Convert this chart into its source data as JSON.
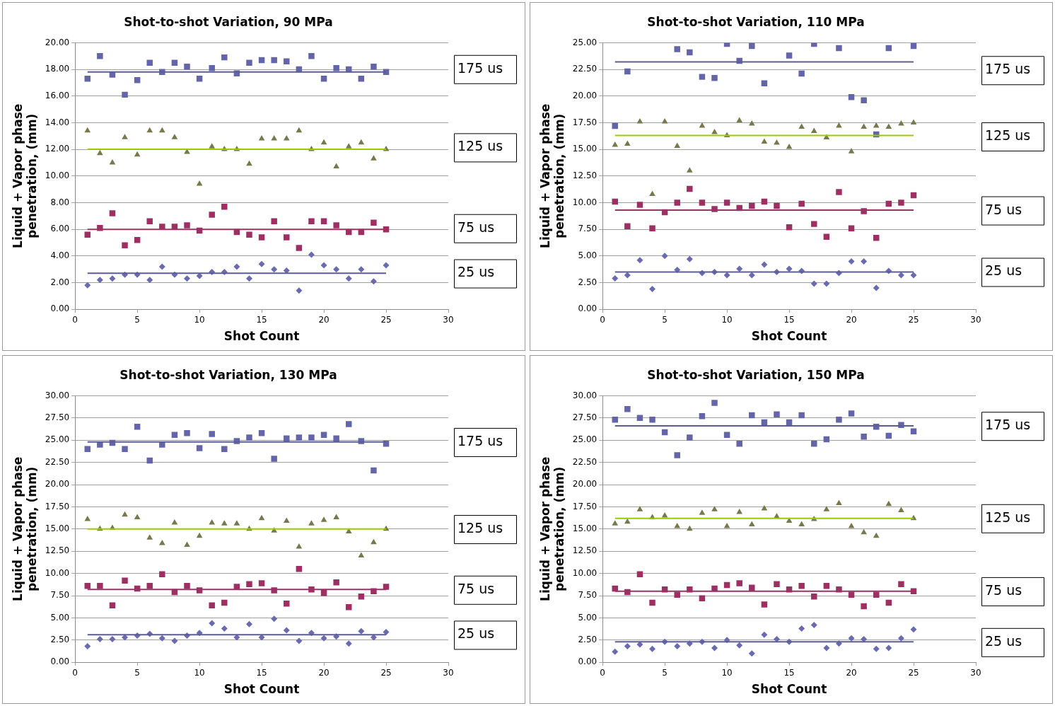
{
  "chart_data": [
    {
      "type": "scatter",
      "title": "Shot-to-shot Variation, 90 MPa",
      "xlabel": "Shot Count",
      "ylabel": "Liquid + Vapor phase penetration, (mm)",
      "legend": false,
      "grid": "y",
      "x": [
        1,
        2,
        3,
        4,
        5,
        6,
        7,
        8,
        9,
        10,
        11,
        12,
        13,
        14,
        15,
        16,
        17,
        18,
        19,
        20,
        21,
        22,
        23,
        24,
        25
      ],
      "xlim": [
        0,
        30
      ],
      "xticks": [
        0,
        5,
        10,
        15,
        20,
        25,
        30
      ],
      "ylim": [
        0,
        20
      ],
      "yticks": [
        {
          "value": 0,
          "label": "0.00"
        },
        {
          "value": 2,
          "label": "2.00"
        },
        {
          "value": 4,
          "label": "4.00"
        },
        {
          "value": 6,
          "label": "6.00"
        },
        {
          "value": 8,
          "label": "8.00"
        },
        {
          "value": 10,
          "label": "10.00"
        },
        {
          "value": 12,
          "label": "12.00"
        },
        {
          "value": 14,
          "label": "14.00"
        },
        {
          "value": 16,
          "label": "16.00"
        },
        {
          "value": 18,
          "label": "18.00"
        },
        {
          "value": 20,
          "label": "20.00"
        }
      ],
      "series": [
        {
          "name": "175 us",
          "type": "scatter",
          "marker": "square",
          "color": "#6464a8",
          "values": [
            17.3,
            19.0,
            17.6,
            16.1,
            17.2,
            18.5,
            17.8,
            18.5,
            18.2,
            17.3,
            18.1,
            18.9,
            17.7,
            18.5,
            18.7,
            18.7,
            18.6,
            18.0,
            19.0,
            17.3,
            18.1,
            18.0,
            17.3,
            18.2,
            17.8
          ]
        },
        {
          "type": "line",
          "marker": "none",
          "color": "#5c5c94",
          "values": [
            17.8,
            17.8,
            17.8,
            17.8,
            17.8,
            17.8,
            17.8,
            17.8,
            17.8,
            17.8,
            17.8,
            17.8,
            17.8,
            17.8,
            17.8,
            17.8,
            17.8,
            17.8,
            17.8,
            17.8,
            17.8,
            17.8,
            17.8,
            17.8,
            17.8
          ]
        },
        {
          "name": "125 us",
          "type": "scatter",
          "marker": "triangle",
          "color": "#77784c",
          "values": [
            13.4,
            11.7,
            11.0,
            12.9,
            11.6,
            13.4,
            13.4,
            12.9,
            11.8,
            9.4,
            12.2,
            12.0,
            12.0,
            10.9,
            12.8,
            12.8,
            12.8,
            13.4,
            12.0,
            12.5,
            10.7,
            12.2,
            12.5,
            11.3,
            12.0
          ]
        },
        {
          "type": "line",
          "marker": "none",
          "color": "#99cc00",
          "values": [
            12.0,
            12.0,
            12.0,
            12.0,
            12.0,
            12.0,
            12.0,
            12.0,
            12.0,
            12.0,
            12.0,
            12.0,
            12.0,
            12.0,
            12.0,
            12.0,
            12.0,
            12.0,
            12.0,
            12.0,
            12.0,
            12.0,
            12.0,
            12.0,
            12.0
          ]
        },
        {
          "name": "75 us",
          "type": "scatter",
          "marker": "square",
          "color": "#9e2f62",
          "values": [
            5.6,
            6.1,
            7.2,
            4.8,
            5.2,
            6.6,
            6.2,
            6.2,
            6.3,
            5.9,
            7.1,
            7.7,
            5.8,
            5.6,
            5.4,
            6.6,
            5.4,
            4.6,
            6.6,
            6.6,
            6.3,
            5.8,
            5.8,
            6.5,
            6.0
          ]
        },
        {
          "type": "line",
          "marker": "none",
          "color": "#993366",
          "values": [
            6.0,
            6.0,
            6.0,
            6.0,
            6.0,
            6.0,
            6.0,
            6.0,
            6.0,
            6.0,
            6.0,
            6.0,
            6.0,
            6.0,
            6.0,
            6.0,
            6.0,
            6.0,
            6.0,
            6.0,
            6.0,
            6.0,
            6.0,
            6.0,
            6.0
          ]
        },
        {
          "name": "25 us",
          "type": "scatter",
          "marker": "diamond",
          "color": "#6a6ab0",
          "values": [
            1.8,
            2.2,
            2.3,
            2.6,
            2.6,
            2.2,
            3.2,
            2.6,
            2.3,
            2.5,
            2.8,
            2.8,
            3.2,
            2.3,
            3.4,
            3.0,
            2.9,
            1.4,
            4.1,
            3.3,
            3.0,
            2.3,
            3.0,
            2.1,
            3.3
          ]
        },
        {
          "type": "line",
          "marker": "none",
          "color": "#5c5c94",
          "values": [
            2.7,
            2.7,
            2.7,
            2.7,
            2.7,
            2.7,
            2.7,
            2.7,
            2.7,
            2.7,
            2.7,
            2.7,
            2.7,
            2.7,
            2.7,
            2.7,
            2.7,
            2.7,
            2.7,
            2.7,
            2.7,
            2.7,
            2.7,
            2.7,
            2.7
          ]
        }
      ]
    },
    {
      "type": "scatter",
      "title": "Shot-to-shot Variation, 110 MPa",
      "xlabel": "Shot Count",
      "ylabel": "Liquid + Vapor phase penetration, (mm)",
      "legend": false,
      "grid": "y",
      "x": [
        1,
        2,
        3,
        4,
        5,
        6,
        7,
        8,
        9,
        10,
        11,
        12,
        13,
        14,
        15,
        16,
        17,
        18,
        19,
        20,
        21,
        22,
        23,
        24,
        25
      ],
      "xlim": [
        0,
        30
      ],
      "xticks": [
        0,
        5,
        10,
        15,
        20,
        25,
        30
      ],
      "ylim": [
        0,
        25
      ],
      "yticks": [
        {
          "value": 0,
          "label": "0.00"
        },
        {
          "value": 2.5,
          "label": "2.50"
        },
        {
          "value": 5,
          "label": "5.00"
        },
        {
          "value": 7.5,
          "label": "7.50"
        },
        {
          "value": 10,
          "label": "10.00"
        },
        {
          "value": 12.5,
          "label": "12.50"
        },
        {
          "value": 15,
          "label": "15.00"
        },
        {
          "value": 17.5,
          "label": "17.50"
        },
        {
          "value": 20,
          "label": "20.00"
        },
        {
          "value": 22.5,
          "label": "22.50"
        },
        {
          "value": 25,
          "label": "25.00"
        }
      ],
      "series": [
        {
          "name": "175 us",
          "type": "scatter",
          "marker": "square",
          "color": "#6464a8",
          "values": [
            17.2,
            22.3,
            null,
            null,
            null,
            24.4,
            24.1,
            21.8,
            21.7,
            24.9,
            23.3,
            24.7,
            21.2,
            null,
            23.8,
            22.1,
            24.9,
            null,
            24.5,
            19.9,
            19.6,
            16.4,
            24.5,
            null,
            24.7
          ]
        },
        {
          "type": "line",
          "marker": "none",
          "color": "#5c5c94",
          "values": [
            23.2,
            23.2,
            23.2,
            23.2,
            23.2,
            23.2,
            23.2,
            23.2,
            23.2,
            23.2,
            23.2,
            23.2,
            23.2,
            23.2,
            23.2,
            23.2,
            23.2,
            23.2,
            23.2,
            23.2,
            23.2,
            23.2,
            23.2,
            23.2,
            23.2
          ]
        },
        {
          "name": "125 us",
          "type": "scatter",
          "marker": "triangle",
          "color": "#77784c",
          "values": [
            15.4,
            15.5,
            17.6,
            10.8,
            17.6,
            15.3,
            13.0,
            17.2,
            16.6,
            16.3,
            17.7,
            17.4,
            15.7,
            15.6,
            15.2,
            17.1,
            16.7,
            16.1,
            17.2,
            14.8,
            17.1,
            17.2,
            17.1,
            17.4,
            17.5
          ]
        },
        {
          "type": "line",
          "marker": "none",
          "color": "#99cc00",
          "values": [
            16.3,
            16.3,
            16.3,
            16.3,
            16.3,
            16.3,
            16.3,
            16.3,
            16.3,
            16.3,
            16.3,
            16.3,
            16.3,
            16.3,
            16.3,
            16.3,
            16.3,
            16.3,
            16.3,
            16.3,
            16.3,
            16.3,
            16.3,
            16.3,
            16.3
          ]
        },
        {
          "name": "75 us",
          "type": "scatter",
          "marker": "square",
          "color": "#9e2f62",
          "values": [
            10.1,
            7.8,
            9.8,
            7.6,
            9.1,
            10.0,
            11.3,
            10.0,
            9.4,
            10.0,
            9.5,
            9.7,
            10.1,
            9.7,
            7.7,
            9.9,
            8.0,
            6.8,
            11.0,
            7.6,
            9.2,
            6.7,
            9.9,
            10.0,
            10.7
          ]
        },
        {
          "type": "line",
          "marker": "none",
          "color": "#993366",
          "values": [
            9.3,
            9.3,
            9.3,
            9.3,
            9.3,
            9.3,
            9.3,
            9.3,
            9.3,
            9.3,
            9.3,
            9.3,
            9.3,
            9.3,
            9.3,
            9.3,
            9.3,
            9.3,
            9.3,
            9.3,
            9.3,
            9.3,
            9.3,
            9.3,
            9.3
          ]
        },
        {
          "name": "25 us",
          "type": "scatter",
          "marker": "diamond",
          "color": "#6a6ab0",
          "values": [
            2.9,
            3.2,
            4.6,
            1.9,
            5.0,
            3.7,
            4.7,
            3.4,
            3.5,
            3.2,
            3.8,
            3.2,
            4.2,
            3.5,
            3.8,
            3.6,
            2.4,
            2.4,
            3.4,
            4.5,
            4.5,
            2.0,
            3.6,
            3.2,
            3.2
          ]
        },
        {
          "type": "line",
          "marker": "none",
          "color": "#5c5c94",
          "values": [
            3.5,
            3.5,
            3.5,
            3.5,
            3.5,
            3.5,
            3.5,
            3.5,
            3.5,
            3.5,
            3.5,
            3.5,
            3.5,
            3.5,
            3.5,
            3.5,
            3.5,
            3.5,
            3.5,
            3.5,
            3.5,
            3.5,
            3.5,
            3.5,
            3.5
          ]
        }
      ]
    },
    {
      "type": "scatter",
      "title": "Shot-to-shot Variation, 130 MPa",
      "xlabel": "Shot Count",
      "ylabel": "Liquid + Vapor phase penetration, (mm)",
      "legend": false,
      "grid": "y",
      "x": [
        1,
        2,
        3,
        4,
        5,
        6,
        7,
        8,
        9,
        10,
        11,
        12,
        13,
        14,
        15,
        16,
        17,
        18,
        19,
        20,
        21,
        22,
        23,
        24,
        25
      ],
      "xlim": [
        0,
        30
      ],
      "xticks": [
        0,
        5,
        10,
        15,
        20,
        25,
        30
      ],
      "ylim": [
        0,
        30
      ],
      "yticks": [
        {
          "value": 0,
          "label": "0.00"
        },
        {
          "value": 2.5,
          "label": "2.50"
        },
        {
          "value": 5,
          "label": "5.00"
        },
        {
          "value": 7.5,
          "label": "7.50"
        },
        {
          "value": 10,
          "label": "10.00"
        },
        {
          "value": 12.5,
          "label": "12.50"
        },
        {
          "value": 15,
          "label": "15.00"
        },
        {
          "value": 17.5,
          "label": "17.50"
        },
        {
          "value": 20,
          "label": "20.00"
        },
        {
          "value": 22.5,
          "label": "22.50"
        },
        {
          "value": 25,
          "label": "25.00"
        },
        {
          "value": 27.5,
          "label": "27.50"
        },
        {
          "value": 30,
          "label": "30.00"
        }
      ],
      "series": [
        {
          "name": "175 us",
          "type": "scatter",
          "marker": "square",
          "color": "#6464a8",
          "values": [
            24.0,
            24.5,
            24.7,
            24.0,
            26.5,
            22.7,
            24.5,
            25.6,
            25.8,
            24.1,
            25.7,
            24.0,
            24.9,
            25.3,
            25.8,
            22.9,
            25.2,
            25.3,
            25.3,
            25.6,
            25.2,
            26.8,
            24.9,
            21.6,
            24.6
          ]
        },
        {
          "type": "line",
          "marker": "none",
          "color": "#5c5c94",
          "values": [
            24.8,
            24.8,
            24.8,
            24.8,
            24.8,
            24.8,
            24.8,
            24.8,
            24.8,
            24.8,
            24.8,
            24.8,
            24.8,
            24.8,
            24.8,
            24.8,
            24.8,
            24.8,
            24.8,
            24.8,
            24.8,
            24.8,
            24.8,
            24.8,
            24.8
          ]
        },
        {
          "name": "125 us",
          "type": "scatter",
          "marker": "triangle",
          "color": "#77784c",
          "values": [
            16.1,
            15.0,
            15.1,
            16.6,
            16.3,
            14.0,
            13.4,
            15.7,
            13.2,
            14.2,
            15.7,
            15.6,
            15.6,
            15.0,
            16.2,
            14.8,
            15.9,
            13.0,
            15.6,
            16.0,
            16.3,
            14.7,
            12.0,
            13.5,
            15.0
          ]
        },
        {
          "type": "line",
          "marker": "none",
          "color": "#99cc00",
          "values": [
            15.0,
            15.0,
            15.0,
            15.0,
            15.0,
            15.0,
            15.0,
            15.0,
            15.0,
            15.0,
            15.0,
            15.0,
            15.0,
            15.0,
            15.0,
            15.0,
            15.0,
            15.0,
            15.0,
            15.0,
            15.0,
            15.0,
            15.0,
            15.0,
            15.0
          ]
        },
        {
          "name": "75 us",
          "type": "scatter",
          "marker": "square",
          "color": "#9e2f62",
          "values": [
            8.6,
            8.6,
            6.4,
            9.2,
            8.3,
            8.6,
            9.9,
            7.9,
            8.6,
            8.1,
            6.4,
            6.7,
            8.5,
            8.8,
            8.9,
            8.1,
            6.6,
            10.5,
            8.2,
            7.8,
            9.0,
            6.2,
            7.4,
            8.0,
            8.5
          ]
        },
        {
          "type": "line",
          "marker": "none",
          "color": "#993366",
          "values": [
            8.2,
            8.2,
            8.2,
            8.2,
            8.2,
            8.2,
            8.2,
            8.2,
            8.2,
            8.2,
            8.2,
            8.2,
            8.2,
            8.2,
            8.2,
            8.2,
            8.2,
            8.2,
            8.2,
            8.2,
            8.2,
            8.2,
            8.2,
            8.2,
            8.2
          ]
        },
        {
          "name": "25 us",
          "type": "scatter",
          "marker": "diamond",
          "color": "#6a6ab0",
          "values": [
            1.8,
            2.6,
            2.6,
            2.8,
            3.0,
            3.2,
            2.7,
            2.4,
            3.0,
            3.3,
            4.4,
            3.8,
            2.8,
            4.3,
            2.8,
            4.9,
            3.6,
            2.4,
            3.3,
            2.7,
            2.9,
            2.1,
            3.5,
            2.8,
            3.4
          ]
        },
        {
          "type": "line",
          "marker": "none",
          "color": "#5c5c94",
          "values": [
            3.1,
            3.1,
            3.1,
            3.1,
            3.1,
            3.1,
            3.1,
            3.1,
            3.1,
            3.1,
            3.1,
            3.1,
            3.1,
            3.1,
            3.1,
            3.1,
            3.1,
            3.1,
            3.1,
            3.1,
            3.1,
            3.1,
            3.1,
            3.1,
            3.1
          ]
        }
      ]
    },
    {
      "type": "scatter",
      "title": "Shot-to-shot Variation, 150 MPa",
      "xlabel": "Shot Count",
      "ylabel": "Liquid + Vapor phase penetration, (mm)",
      "legend": false,
      "grid": "y",
      "x": [
        1,
        2,
        3,
        4,
        5,
        6,
        7,
        8,
        9,
        10,
        11,
        12,
        13,
        14,
        15,
        16,
        17,
        18,
        19,
        20,
        21,
        22,
        23,
        24,
        25
      ],
      "xlim": [
        0,
        30
      ],
      "xticks": [
        0,
        5,
        10,
        15,
        20,
        25,
        30
      ],
      "ylim": [
        0,
        30
      ],
      "yticks": [
        {
          "value": 0,
          "label": "0.00"
        },
        {
          "value": 2.5,
          "label": "2.50"
        },
        {
          "value": 5,
          "label": "5.00"
        },
        {
          "value": 7.5,
          "label": "7.50"
        },
        {
          "value": 10,
          "label": "10.00"
        },
        {
          "value": 12.5,
          "label": "12.50"
        },
        {
          "value": 15,
          "label": "15.00"
        },
        {
          "value": 17.5,
          "label": "17.50"
        },
        {
          "value": 20,
          "label": "20.00"
        },
        {
          "value": 22.5,
          "label": "22.50"
        },
        {
          "value": 25,
          "label": "25.00"
        },
        {
          "value": 27.5,
          "label": "27.50"
        },
        {
          "value": 30,
          "label": "30.00"
        }
      ],
      "series": [
        {
          "name": "175 us",
          "type": "scatter",
          "marker": "square",
          "color": "#6464a8",
          "values": [
            27.3,
            28.5,
            27.5,
            27.3,
            25.9,
            23.3,
            25.3,
            27.7,
            29.2,
            25.6,
            24.6,
            27.8,
            27.0,
            27.9,
            27.0,
            27.8,
            24.6,
            25.1,
            27.3,
            28.0,
            25.4,
            26.5,
            25.5,
            26.7,
            26.0
          ]
        },
        {
          "type": "line",
          "marker": "none",
          "color": "#5c5c94",
          "values": [
            26.6,
            26.6,
            26.6,
            26.6,
            26.6,
            26.6,
            26.6,
            26.6,
            26.6,
            26.6,
            26.6,
            26.6,
            26.6,
            26.6,
            26.6,
            26.6,
            26.6,
            26.6,
            26.6,
            26.6,
            26.6,
            26.6,
            26.6,
            26.6,
            26.6
          ]
        },
        {
          "name": "125 us",
          "type": "scatter",
          "marker": "triangle",
          "color": "#77784c",
          "values": [
            15.6,
            15.8,
            17.2,
            16.3,
            16.5,
            15.3,
            15.0,
            16.8,
            17.2,
            15.3,
            16.9,
            15.5,
            17.3,
            16.4,
            15.9,
            15.5,
            16.1,
            17.2,
            17.9,
            15.3,
            14.6,
            14.2,
            17.8,
            17.1,
            16.2
          ]
        },
        {
          "type": "line",
          "marker": "none",
          "color": "#99cc00",
          "values": [
            16.2,
            16.2,
            16.2,
            16.2,
            16.2,
            16.2,
            16.2,
            16.2,
            16.2,
            16.2,
            16.2,
            16.2,
            16.2,
            16.2,
            16.2,
            16.2,
            16.2,
            16.2,
            16.2,
            16.2,
            16.2,
            16.2,
            16.2,
            16.2,
            16.2
          ]
        },
        {
          "name": "75 us",
          "type": "scatter",
          "marker": "square",
          "color": "#9e2f62",
          "values": [
            8.3,
            7.9,
            9.9,
            6.7,
            8.2,
            7.6,
            8.2,
            7.2,
            8.3,
            8.7,
            8.9,
            8.4,
            6.5,
            8.8,
            8.2,
            8.6,
            7.4,
            8.6,
            8.2,
            7.6,
            6.3,
            7.6,
            6.7,
            8.8,
            8.0
          ]
        },
        {
          "type": "line",
          "marker": "none",
          "color": "#993366",
          "values": [
            8.0,
            8.0,
            8.0,
            8.0,
            8.0,
            8.0,
            8.0,
            8.0,
            8.0,
            8.0,
            8.0,
            8.0,
            8.0,
            8.0,
            8.0,
            8.0,
            8.0,
            8.0,
            8.0,
            8.0,
            8.0,
            8.0,
            8.0,
            8.0,
            8.0
          ]
        },
        {
          "name": "25 us",
          "type": "scatter",
          "marker": "diamond",
          "color": "#6a6ab0",
          "values": [
            1.2,
            1.8,
            2.0,
            1.5,
            2.3,
            1.8,
            2.1,
            2.3,
            1.6,
            2.5,
            1.9,
            1.0,
            3.1,
            2.6,
            2.3,
            3.8,
            4.2,
            1.6,
            2.1,
            2.7,
            2.6,
            1.5,
            1.6,
            2.7,
            3.7
          ]
        },
        {
          "type": "line",
          "marker": "none",
          "color": "#5c5c94",
          "values": [
            2.3,
            2.3,
            2.3,
            2.3,
            2.3,
            2.3,
            2.3,
            2.3,
            2.3,
            2.3,
            2.3,
            2.3,
            2.3,
            2.3,
            2.3,
            2.3,
            2.3,
            2.3,
            2.3,
            2.3,
            2.3,
            2.3,
            2.3,
            2.3,
            2.3
          ]
        }
      ]
    }
  ]
}
